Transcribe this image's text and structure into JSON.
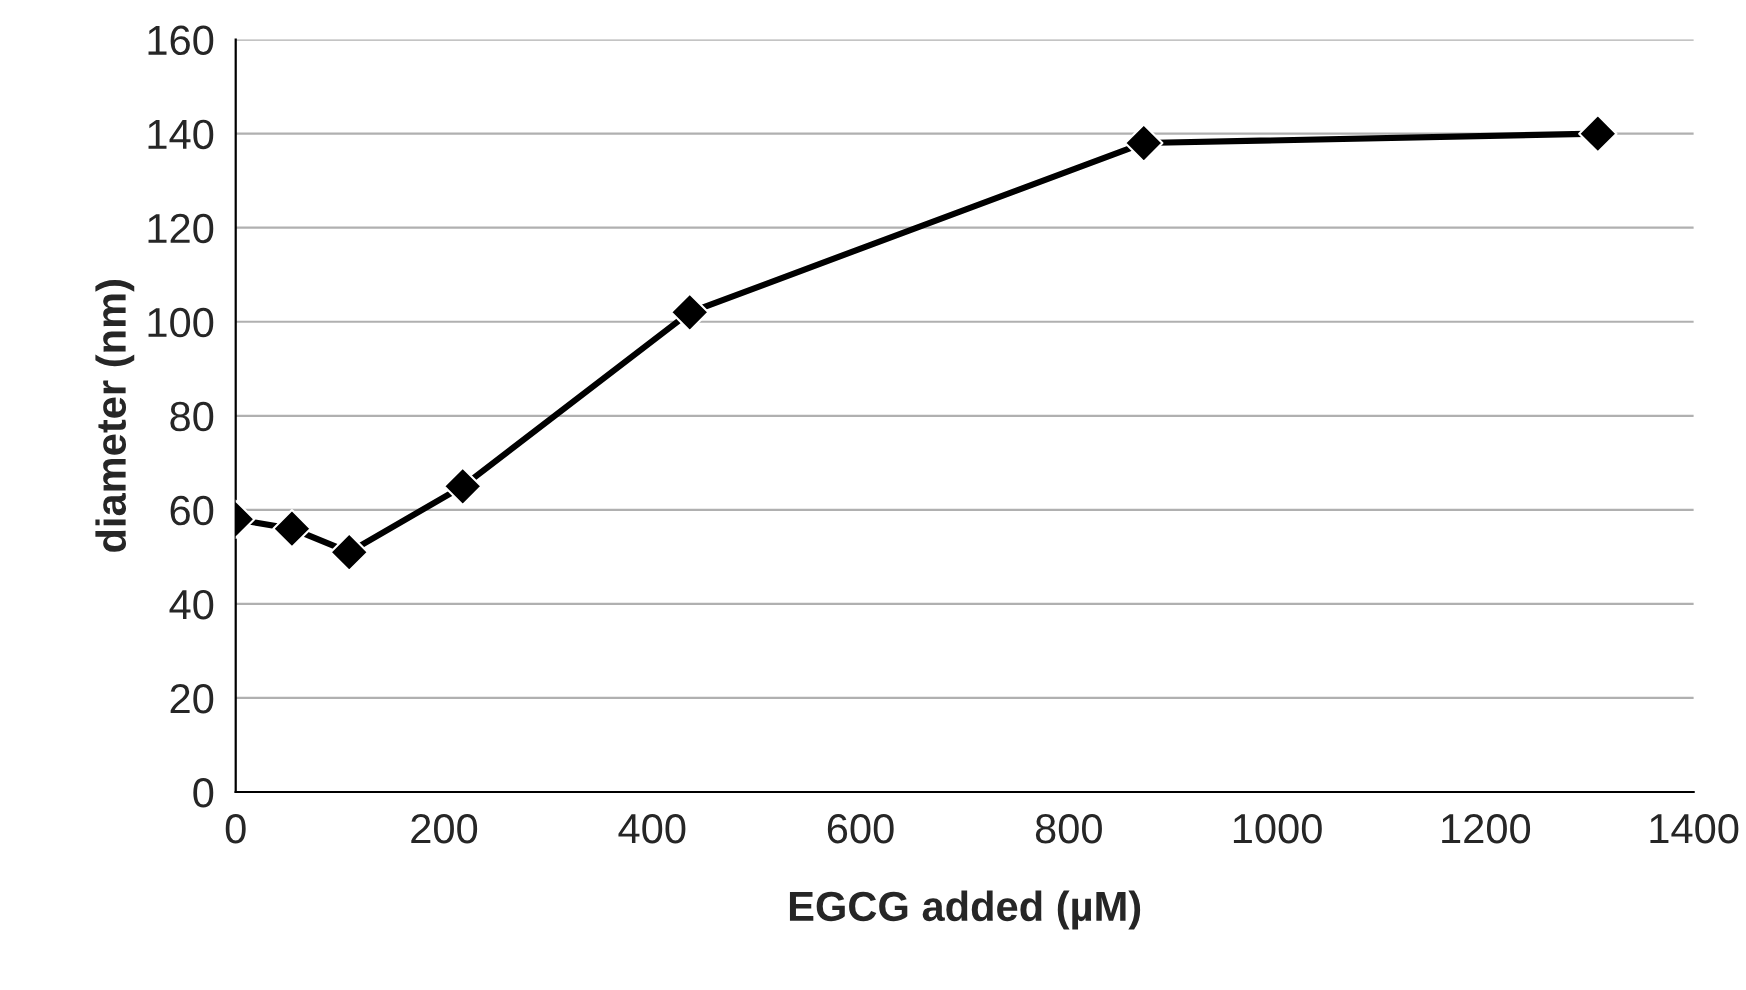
{
  "chart_data": {
    "type": "line",
    "xlabel": "EGCG added (µM)",
    "ylabel": "diameter (nm)",
    "x": [
      0,
      54,
      109,
      218,
      436,
      872,
      1308
    ],
    "series": [
      {
        "color": "#000000",
        "values": [
          58,
          56,
          51,
          65,
          102,
          138,
          140
        ]
      }
    ],
    "xlim": [
      0,
      1400
    ],
    "xticks": [
      0,
      200,
      400,
      600,
      800,
      1000,
      1200,
      1400
    ],
    "ylim": [
      0,
      160
    ],
    "yticks": [
      0,
      20,
      40,
      60,
      80,
      100,
      120,
      140,
      160
    ],
    "grid": "y",
    "marker": "diamond",
    "line_style": "solid",
    "legend": false
  }
}
